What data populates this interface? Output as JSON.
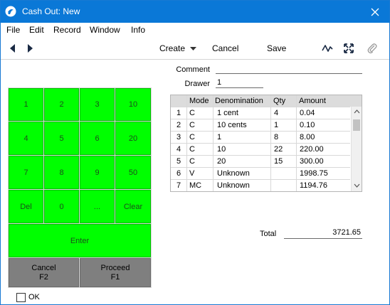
{
  "window": {
    "title": "Cash Out: New"
  },
  "menu": [
    "File",
    "Edit",
    "Record",
    "Window",
    "Info"
  ],
  "toolbar": {
    "create_label": "Create",
    "cancel_label": "Cancel",
    "save_label": "Save"
  },
  "form": {
    "comment_label": "Comment",
    "comment_value": "",
    "drawer_label": "Drawer",
    "drawer_value": "1"
  },
  "keypad": {
    "keys": [
      "1",
      "2",
      "3",
      "10",
      "4",
      "5",
      "6",
      "20",
      "7",
      "8",
      "9",
      "50",
      "Del",
      "0",
      "...",
      "Clear"
    ],
    "enter_label": "Enter",
    "cancel_label": "Cancel",
    "cancel_shortcut": "F2",
    "proceed_label": "Proceed",
    "proceed_shortcut": "F1"
  },
  "table": {
    "headers": [
      "Mode",
      "Denomination",
      "Qty",
      "Amount"
    ],
    "rows": [
      {
        "n": "1",
        "mode": "C",
        "denom": "1 cent",
        "qty": "4",
        "amount": "0.04"
      },
      {
        "n": "2",
        "mode": "C",
        "denom": "10 cents",
        "qty": "1",
        "amount": "0.10"
      },
      {
        "n": "3",
        "mode": "C",
        "denom": "1",
        "qty": "8",
        "amount": "8.00"
      },
      {
        "n": "4",
        "mode": "C",
        "denom": "10",
        "qty": "22",
        "amount": "220.00"
      },
      {
        "n": "5",
        "mode": "C",
        "denom": "20",
        "qty": "15",
        "amount": "300.00"
      },
      {
        "n": "6",
        "mode": "V",
        "denom": "Unknown",
        "qty": "",
        "amount": "1998.75"
      },
      {
        "n": "7",
        "mode": "MC",
        "denom": "Unknown",
        "qty": "",
        "amount": "1194.76"
      }
    ]
  },
  "total": {
    "label": "Total",
    "value": "3721.65"
  },
  "ok_checkbox": {
    "label": "OK",
    "checked": false
  }
}
